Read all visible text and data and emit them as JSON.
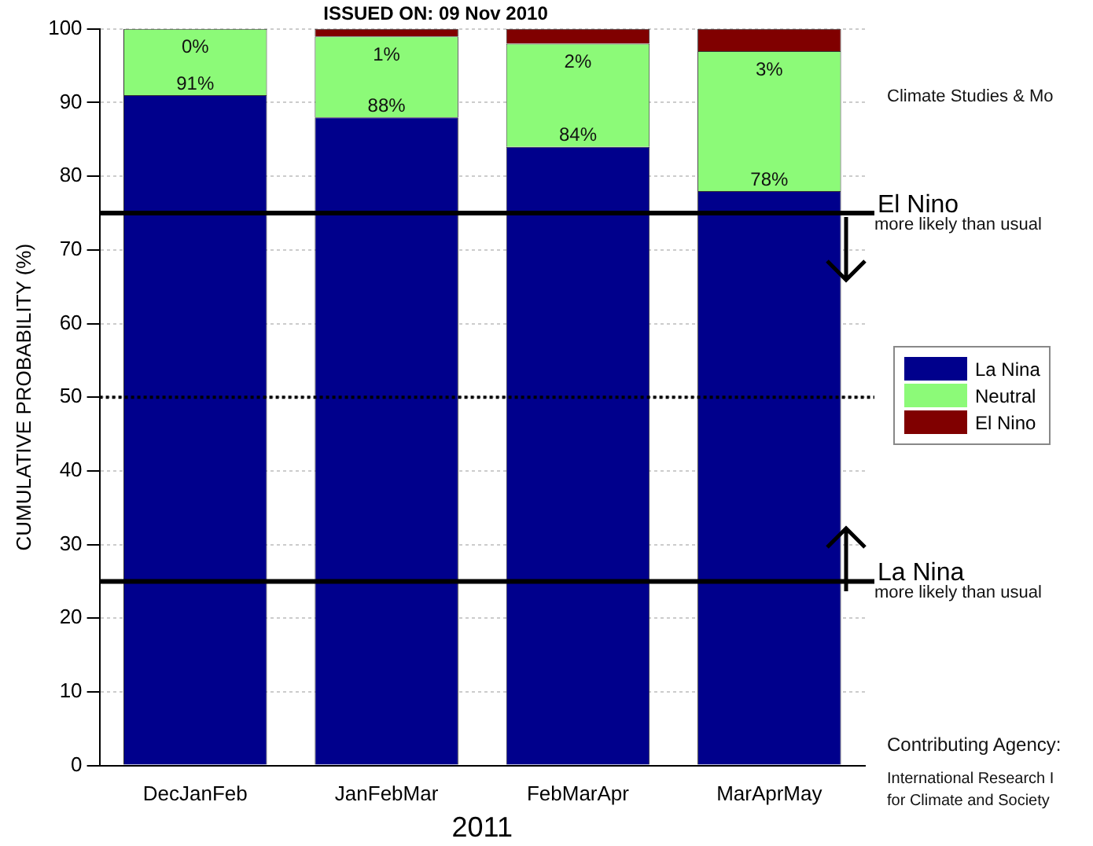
{
  "chart_data": {
    "type": "bar",
    "title": "ISSUED ON: 09 Nov 2010",
    "xlabel": "2011",
    "ylabel": "CUMULATIVE PROBABILITY (%)",
    "categories": [
      "DecJanFeb",
      "JanFebMar",
      "FebMarApr",
      "MarAprMay"
    ],
    "stacked": true,
    "series": [
      {
        "name": "La Nina",
        "color": "#00008c",
        "values": [
          91,
          88,
          84,
          78
        ],
        "value_labels": [
          "91%",
          "88%",
          "84%",
          "78%"
        ]
      },
      {
        "name": "Neutral",
        "color": "#8cfa78",
        "values": [
          9,
          11,
          14,
          19
        ]
      },
      {
        "name": "El Nino",
        "color": "#800000",
        "values": [
          0,
          1,
          2,
          3
        ],
        "value_labels": [
          "0%",
          "1%",
          "2%",
          "3%"
        ]
      }
    ],
    "ylim": [
      0,
      100
    ],
    "yticks": [
      0,
      10,
      20,
      30,
      40,
      50,
      60,
      70,
      80,
      90,
      100
    ],
    "grid": "y",
    "legend": "right",
    "ref_lines": [
      {
        "axis": "y",
        "value": 75,
        "label": "El Nino",
        "color": "#000000",
        "line_style": "solid"
      },
      {
        "axis": "y",
        "value": 50,
        "label": null,
        "color": "#000000",
        "line_style": "dotted"
      },
      {
        "axis": "y",
        "value": 25,
        "label": "La Nina",
        "color": "#000000",
        "line_style": "solid"
      }
    ],
    "annotations": [
      "more likely than usual",
      "more likely than usual",
      "Climate Studies & Mo",
      "Contributing Agency:",
      "International Research I",
      "for Climate and Society"
    ]
  }
}
